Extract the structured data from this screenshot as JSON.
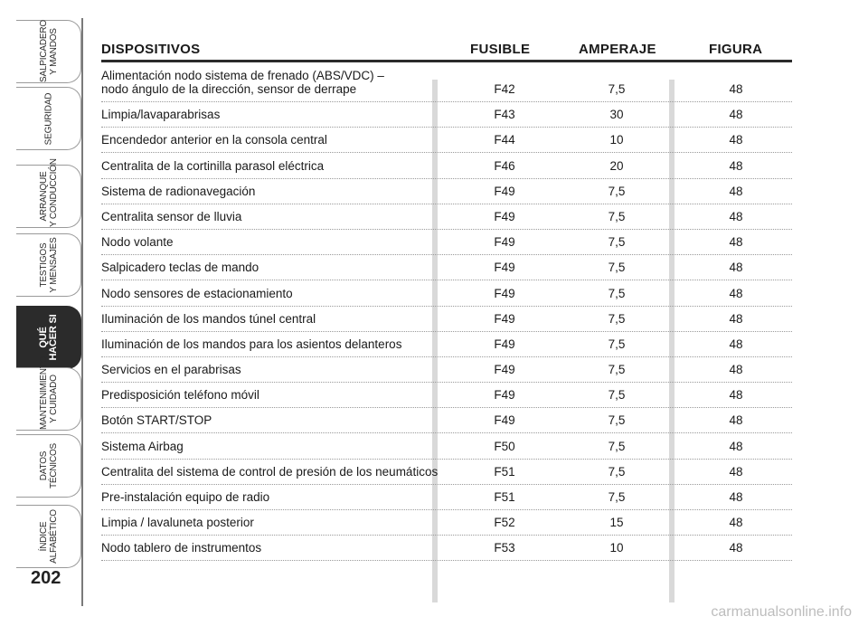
{
  "side_tabs": [
    {
      "label": "SALPICADERO\nY MANDOS",
      "active": false
    },
    {
      "label": "SEGURIDAD",
      "active": false
    },
    {
      "label": "ARRANQUE\nY CONDUCCIÓN",
      "active": false
    },
    {
      "label": "TESTIGOS\nY MENSAJES",
      "active": false
    },
    {
      "label": "QUÉ\nHACER SI",
      "active": true
    },
    {
      "label": "MANTENIMIENTO\nY CUIDADO",
      "active": false
    },
    {
      "label": "DATOS\nTÉCNICOS",
      "active": false
    },
    {
      "label": "ÍNDICE\nALFABÉTICO",
      "active": false
    }
  ],
  "page_number": "202",
  "table": {
    "headers": {
      "device": "DISPOSITIVOS",
      "fuse": "FUSIBLE",
      "amperage": "AMPERAJE",
      "figure": "FIGURA"
    },
    "rows": [
      {
        "device": "Alimentación nodo sistema de frenado (ABS/VDC) –\nnodo ángulo de la dirección, sensor de derrape",
        "fuse": "F42",
        "amperage": "7,5",
        "figure": "48"
      },
      {
        "device": "Limpia/lavaparabrisas",
        "fuse": "F43",
        "amperage": "30",
        "figure": "48"
      },
      {
        "device": "Encendedor anterior en la consola central",
        "fuse": "F44",
        "amperage": "10",
        "figure": "48"
      },
      {
        "device": "Centralita de la cortinilla parasol eléctrica",
        "fuse": "F46",
        "amperage": "20",
        "figure": "48"
      },
      {
        "device": "Sistema de radionavegación",
        "fuse": "F49",
        "amperage": "7,5",
        "figure": "48"
      },
      {
        "device": "Centralita sensor de lluvia",
        "fuse": "F49",
        "amperage": "7,5",
        "figure": "48"
      },
      {
        "device": "Nodo volante",
        "fuse": "F49",
        "amperage": "7,5",
        "figure": "48"
      },
      {
        "device": "Salpicadero teclas de mando",
        "fuse": "F49",
        "amperage": "7,5",
        "figure": "48"
      },
      {
        "device": "Nodo sensores de estacionamiento",
        "fuse": "F49",
        "amperage": "7,5",
        "figure": "48"
      },
      {
        "device": "Iluminación de los mandos túnel central",
        "fuse": "F49",
        "amperage": "7,5",
        "figure": "48"
      },
      {
        "device": "Iluminación de los mandos para los asientos delanteros",
        "fuse": "F49",
        "amperage": "7,5",
        "figure": "48"
      },
      {
        "device": "Servicios en el parabrisas",
        "fuse": "F49",
        "amperage": "7,5",
        "figure": "48"
      },
      {
        "device": "Predisposición teléfono móvil",
        "fuse": "F49",
        "amperage": "7,5",
        "figure": "48"
      },
      {
        "device": "Botón START/STOP",
        "fuse": "F49",
        "amperage": "7,5",
        "figure": "48"
      },
      {
        "device": "Sistema Airbag",
        "fuse": "F50",
        "amperage": "7,5",
        "figure": "48"
      },
      {
        "device": "Centralita del sistema de control de presión de los neumáticos",
        "fuse": "F51",
        "amperage": "7,5",
        "figure": "48"
      },
      {
        "device": "Pre-instalación equipo de radio",
        "fuse": "F51",
        "amperage": "7,5",
        "figure": "48"
      },
      {
        "device": "Limpia / lavaluneta posterior",
        "fuse": "F52",
        "amperage": "15",
        "figure": "48"
      },
      {
        "device": "Nodo tablero de instrumentos",
        "fuse": "F53",
        "amperage": "10",
        "figure": "48"
      }
    ]
  },
  "footer_watermark": "carmanualsonline.info"
}
